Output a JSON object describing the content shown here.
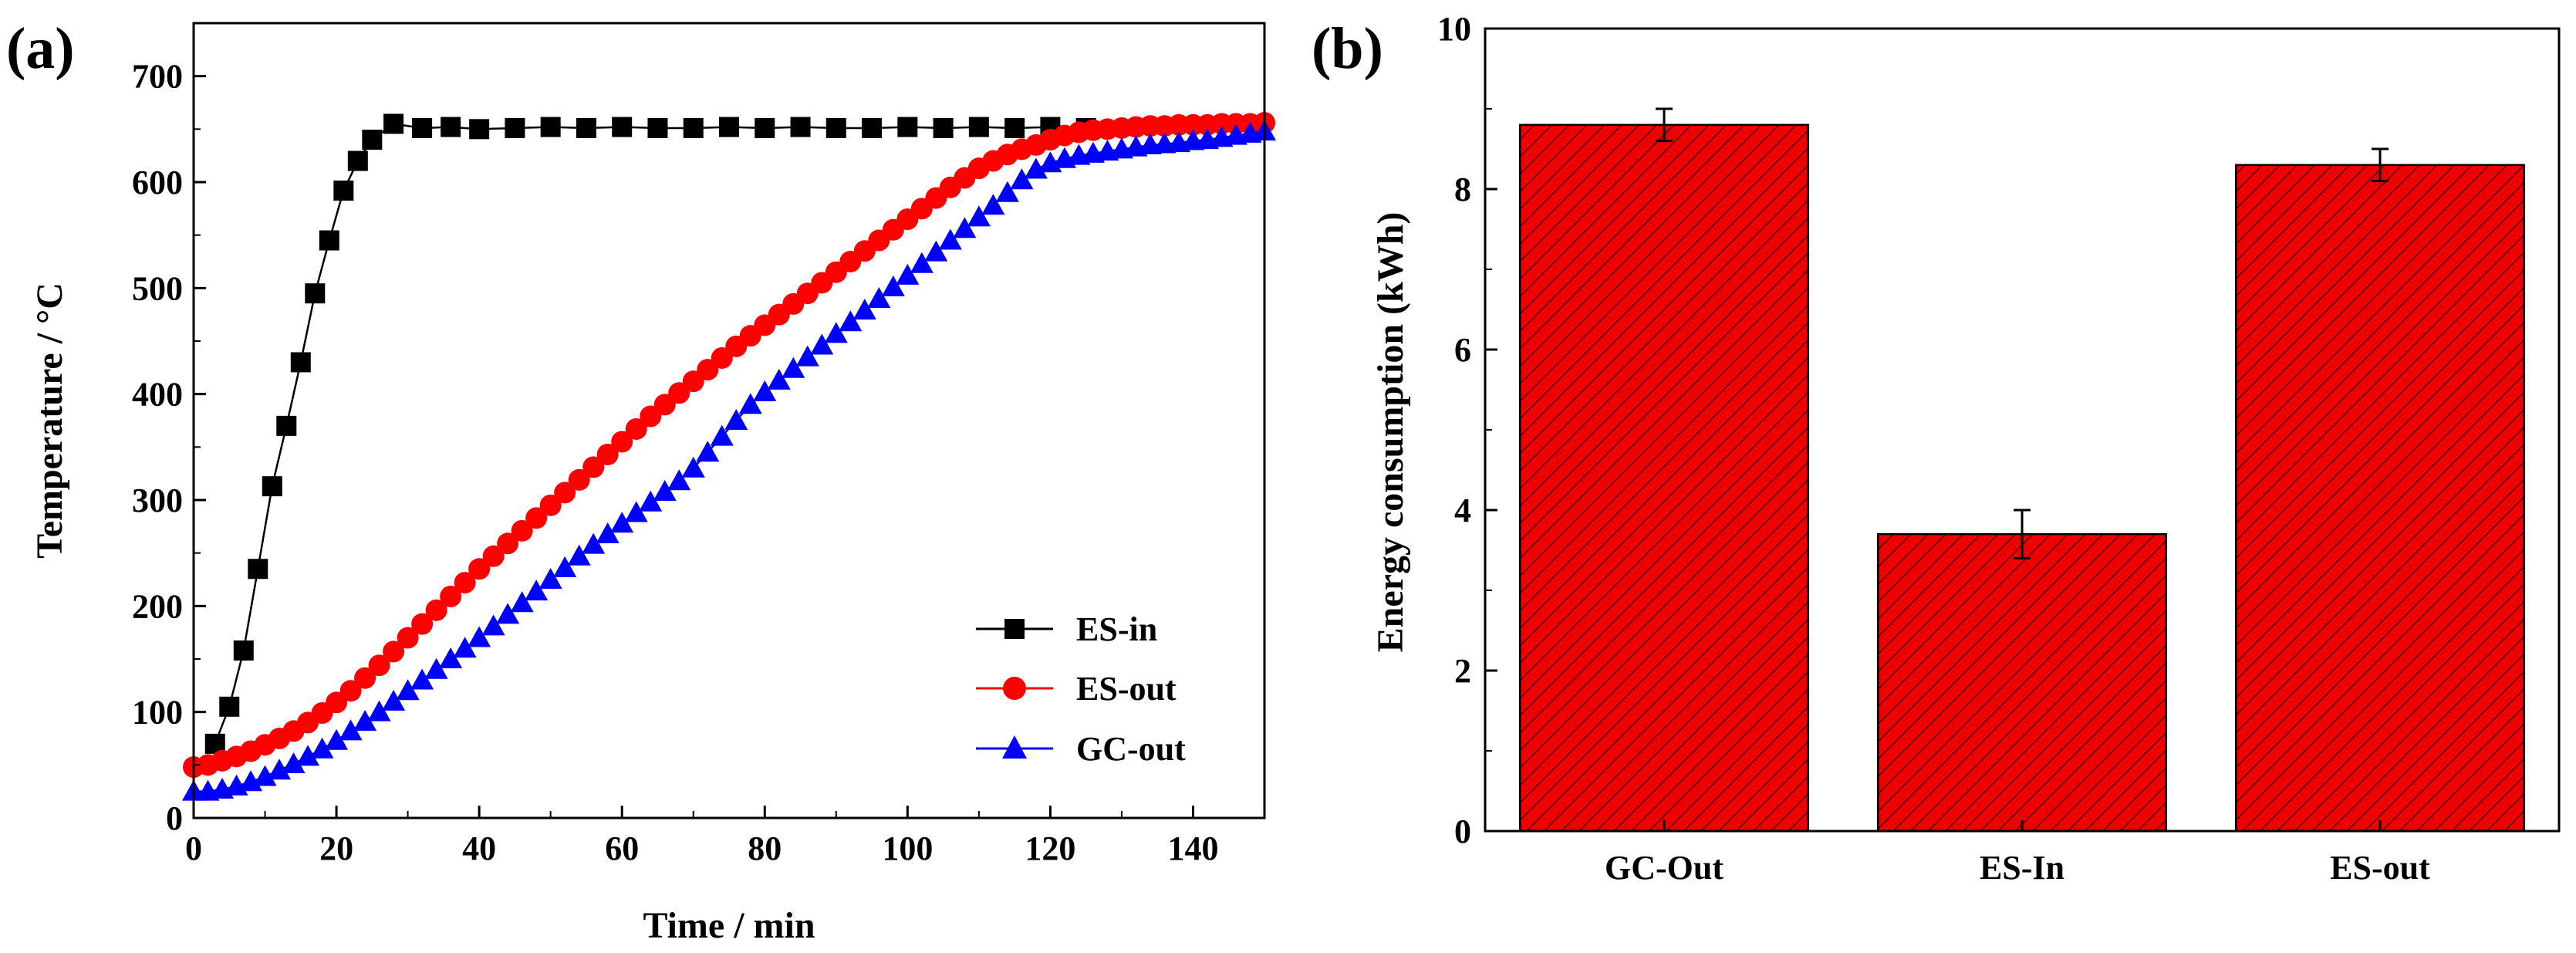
{
  "figure": {
    "panel_a_label": "(a)",
    "panel_b_label": "(b)"
  },
  "chart_data": [
    {
      "type": "line",
      "panel": "(a)",
      "xlabel": "Time / min",
      "ylabel": "Temperature / °C",
      "xlim": [
        0,
        150
      ],
      "ylim": [
        0,
        750
      ],
      "xticks": [
        "0",
        "20",
        "40",
        "60",
        "80",
        "100",
        "120",
        "140"
      ],
      "yticks": [
        "0",
        "100",
        "200",
        "300",
        "400",
        "500",
        "600",
        "700"
      ],
      "legend_position": "bottom-right",
      "series": [
        {
          "name": "ES-in",
          "color": "#000000",
          "marker": "square",
          "x": [
            3,
            5,
            7,
            9,
            11,
            13,
            15,
            17,
            19,
            21,
            23,
            25,
            28,
            32,
            36,
            40,
            45,
            50,
            55,
            60,
            65,
            70,
            75,
            80,
            85,
            90,
            95,
            100,
            105,
            110,
            115,
            120,
            125
          ],
          "y": [
            70,
            105,
            158,
            235,
            313,
            370,
            430,
            495,
            545,
            592,
            620,
            640,
            655,
            651,
            652,
            650,
            651,
            652,
            651,
            652,
            651,
            651,
            652,
            651,
            652,
            651,
            651,
            652,
            651,
            652,
            651,
            652,
            651
          ]
        },
        {
          "name": "ES-out",
          "color": "#ff0000",
          "marker": "circle",
          "x": [
            0,
            2,
            4,
            6,
            8,
            10,
            12,
            14,
            16,
            18,
            20,
            22,
            24,
            26,
            28,
            30,
            32,
            34,
            36,
            38,
            40,
            42,
            44,
            46,
            48,
            50,
            52,
            54,
            56,
            58,
            60,
            62,
            64,
            66,
            68,
            70,
            72,
            74,
            76,
            78,
            80,
            82,
            84,
            86,
            88,
            90,
            92,
            94,
            96,
            98,
            100,
            102,
            104,
            106,
            108,
            110,
            112,
            114,
            116,
            118,
            120,
            122,
            124,
            126,
            128,
            130,
            132,
            134,
            136,
            138,
            140,
            142,
            144,
            146,
            148,
            150
          ],
          "y": [
            48,
            50,
            54,
            58,
            63,
            69,
            75,
            82,
            90,
            99,
            109,
            120,
            132,
            144,
            157,
            170,
            183,
            196,
            209,
            222,
            235,
            247,
            259,
            271,
            283,
            295,
            307,
            319,
            331,
            343,
            355,
            367,
            379,
            390,
            401,
            412,
            423,
            434,
            445,
            455,
            465,
            475,
            485,
            495,
            505,
            515,
            525,
            535,
            545,
            555,
            565,
            575,
            585,
            595,
            604,
            613,
            620,
            626,
            631,
            635,
            640,
            644,
            647,
            649,
            650,
            651,
            652,
            653,
            653,
            654,
            654,
            654,
            655,
            655,
            655,
            656
          ]
        },
        {
          "name": "GC-out",
          "color": "#0000ff",
          "marker": "triangle",
          "x": [
            0,
            2,
            4,
            6,
            8,
            10,
            12,
            14,
            16,
            18,
            20,
            22,
            24,
            26,
            28,
            30,
            32,
            34,
            36,
            38,
            40,
            42,
            44,
            46,
            48,
            50,
            52,
            54,
            56,
            58,
            60,
            62,
            64,
            66,
            68,
            70,
            72,
            74,
            76,
            78,
            80,
            82,
            84,
            86,
            88,
            90,
            92,
            94,
            96,
            98,
            100,
            102,
            104,
            106,
            108,
            110,
            112,
            114,
            116,
            118,
            120,
            122,
            124,
            126,
            128,
            130,
            132,
            134,
            136,
            138,
            140,
            142,
            144,
            146,
            148,
            150
          ],
          "y": [
            25,
            25,
            27,
            30,
            34,
            39,
            45,
            51,
            58,
            65,
            73,
            82,
            91,
            100,
            110,
            120,
            130,
            140,
            150,
            160,
            170,
            181,
            192,
            203,
            214,
            225,
            236,
            247,
            258,
            268,
            278,
            288,
            298,
            308,
            318,
            330,
            345,
            360,
            375,
            390,
            402,
            413,
            424,
            435,
            446,
            457,
            468,
            479,
            490,
            501,
            512,
            523,
            534,
            545,
            556,
            567,
            578,
            590,
            602,
            612,
            618,
            622,
            625,
            627,
            629,
            631,
            633,
            635,
            636,
            637,
            639,
            640,
            642,
            644,
            646,
            648
          ]
        }
      ]
    },
    {
      "type": "bar",
      "panel": "(b)",
      "xlabel": "",
      "ylabel": "Energy consumption (kWh)",
      "ylim": [
        0,
        10
      ],
      "yticks": [
        "0",
        "2",
        "4",
        "6",
        "8",
        "10"
      ],
      "categories": [
        "GC-Out",
        "ES-In",
        "ES-out"
      ],
      "values": [
        8.8,
        3.7,
        8.3
      ],
      "errors": [
        0.2,
        0.3,
        0.2
      ],
      "bar_color": "#ee0000",
      "hatch_color": "#550000"
    }
  ]
}
